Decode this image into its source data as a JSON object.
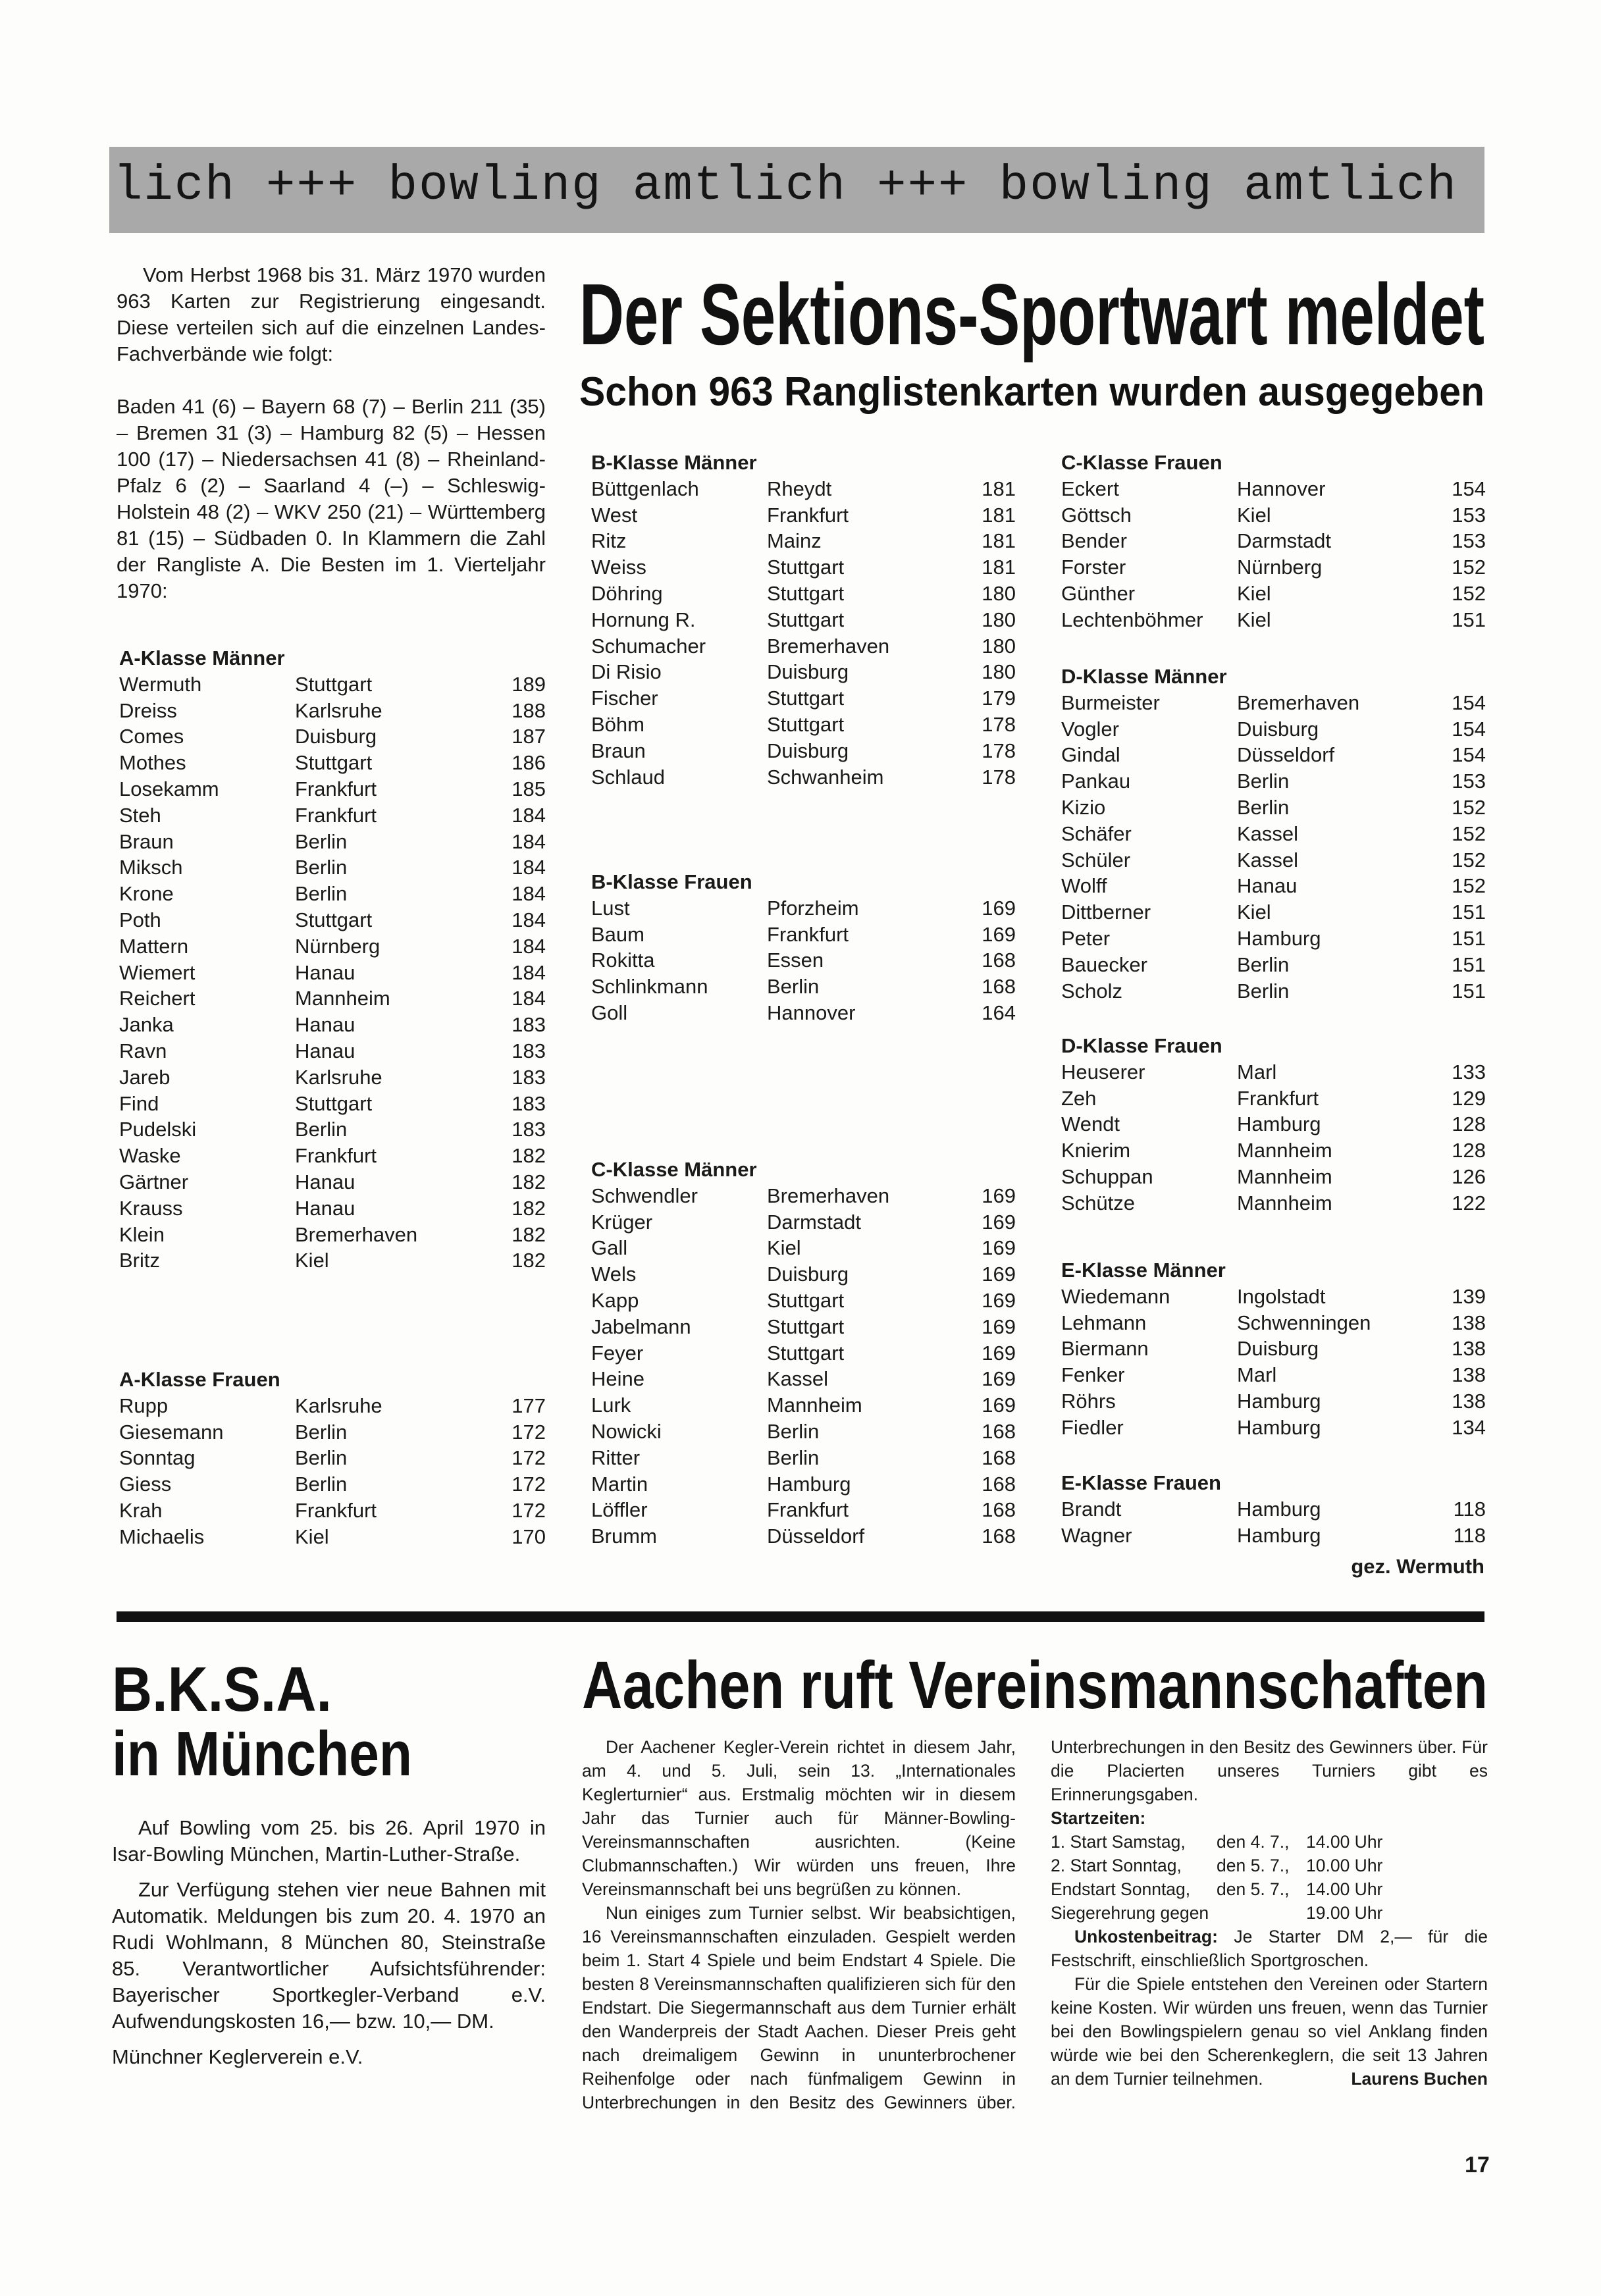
{
  "banner": "lich +++ bowling amtlich +++ bowling amtlich +++ bo",
  "main_article": {
    "title": "Der Sektions-Sportwart meldet",
    "subtitle": "Schon 963 Ranglistenkarten wurden ausgegeben",
    "intro": "Vom Herbst 1968 bis 31. März 1970 wurden 963 Karten zur Registrierung eingesandt. Diese verteilen sich auf die einzelnen Landes-Fachverbände wie folgt:",
    "distribution": "Baden 41 (6) – Bayern 68 (7) – Berlin 211 (35) – Bremen 31 (3) – Hamburg 82 (5) – Hessen 100 (17) – Niedersachsen 41 (8) – Rheinland-Pfalz 6 (2) – Saarland 4 (–) – Schleswig-Holstein 48 (2) – WKV 250 (21) – Württemberg 81 (15) – Südbaden 0. In Klammern die Zahl der Rangliste A. Die Besten im 1. Vierteljahr 1970:",
    "sections": [
      {
        "title": "A-Klasse Männer",
        "rows": [
          [
            "Wermuth",
            "Stuttgart",
            "189"
          ],
          [
            "Dreiss",
            "Karlsruhe",
            "188"
          ],
          [
            "Comes",
            "Duisburg",
            "187"
          ],
          [
            "Mothes",
            "Stuttgart",
            "186"
          ],
          [
            "Losekamm",
            "Frankfurt",
            "185"
          ],
          [
            "Steh",
            "Frankfurt",
            "184"
          ],
          [
            "Braun",
            "Berlin",
            "184"
          ],
          [
            "Miksch",
            "Berlin",
            "184"
          ],
          [
            "Krone",
            "Berlin",
            "184"
          ],
          [
            "Poth",
            "Stuttgart",
            "184"
          ],
          [
            "Mattern",
            "Nürnberg",
            "184"
          ],
          [
            "Wiemert",
            "Hanau",
            "184"
          ],
          [
            "Reichert",
            "Mannheim",
            "184"
          ],
          [
            "Janka",
            "Hanau",
            "183"
          ],
          [
            "Ravn",
            "Hanau",
            "183"
          ],
          [
            "Jareb",
            "Karlsruhe",
            "183"
          ],
          [
            "Find",
            "Stuttgart",
            "183"
          ],
          [
            "Pudelski",
            "Berlin",
            "183"
          ],
          [
            "Waske",
            "Frankfurt",
            "182"
          ],
          [
            "Gärtner",
            "Hanau",
            "182"
          ],
          [
            "Krauss",
            "Hanau",
            "182"
          ],
          [
            "Klein",
            "Bremerhaven",
            "182"
          ],
          [
            "Britz",
            "Kiel",
            "182"
          ]
        ]
      },
      {
        "title": "A-Klasse Frauen",
        "rows": [
          [
            "Rupp",
            "Karlsruhe",
            "177"
          ],
          [
            "Giesemann",
            "Berlin",
            "172"
          ],
          [
            "Sonntag",
            "Berlin",
            "172"
          ],
          [
            "Giess",
            "Berlin",
            "172"
          ],
          [
            "Krah",
            "Frankfurt",
            "172"
          ],
          [
            "Michaelis",
            "Kiel",
            "170"
          ]
        ]
      },
      {
        "title": "B-Klasse Männer",
        "rows": [
          [
            "Büttgenlach",
            "Rheydt",
            "181"
          ],
          [
            "West",
            "Frankfurt",
            "181"
          ],
          [
            "Ritz",
            "Mainz",
            "181"
          ],
          [
            "Weiss",
            "Stuttgart",
            "181"
          ],
          [
            "Döhring",
            "Stuttgart",
            "180"
          ],
          [
            "Hornung R.",
            "Stuttgart",
            "180"
          ],
          [
            "Schumacher",
            "Bremerhaven",
            "180"
          ],
          [
            "Di Risio",
            "Duisburg",
            "180"
          ],
          [
            "Fischer",
            "Stuttgart",
            "179"
          ],
          [
            "Böhm",
            "Stuttgart",
            "178"
          ],
          [
            "Braun",
            "Duisburg",
            "178"
          ],
          [
            "Schlaud",
            "Schwanheim",
            "178"
          ]
        ]
      },
      {
        "title": "B-Klasse Frauen",
        "rows": [
          [
            "Lust",
            "Pforzheim",
            "169"
          ],
          [
            "Baum",
            "Frankfurt",
            "169"
          ],
          [
            "Rokitta",
            "Essen",
            "168"
          ],
          [
            "Schlinkmann",
            "Berlin",
            "168"
          ],
          [
            "Goll",
            "Hannover",
            "164"
          ]
        ]
      },
      {
        "title": "C-Klasse Männer",
        "rows": [
          [
            "Schwendler",
            "Bremerhaven",
            "169"
          ],
          [
            "Krüger",
            "Darmstadt",
            "169"
          ],
          [
            "Gall",
            "Kiel",
            "169"
          ],
          [
            "Wels",
            "Duisburg",
            "169"
          ],
          [
            "Kapp",
            "Stuttgart",
            "169"
          ],
          [
            "Jabelmann",
            "Stuttgart",
            "169"
          ],
          [
            "Feyer",
            "Stuttgart",
            "169"
          ],
          [
            "Heine",
            "Kassel",
            "169"
          ],
          [
            "Lurk",
            "Mannheim",
            "169"
          ],
          [
            "Nowicki",
            "Berlin",
            "168"
          ],
          [
            "Ritter",
            "Berlin",
            "168"
          ],
          [
            "Martin",
            "Hamburg",
            "168"
          ],
          [
            "Löffler",
            "Frankfurt",
            "168"
          ],
          [
            "Brumm",
            "Düsseldorf",
            "168"
          ]
        ]
      },
      {
        "title": "C-Klasse Frauen",
        "rows": [
          [
            "Eckert",
            "Hannover",
            "154"
          ],
          [
            "Göttsch",
            "Kiel",
            "153"
          ],
          [
            "Bender",
            "Darmstadt",
            "153"
          ],
          [
            "Forster",
            "Nürnberg",
            "152"
          ],
          [
            "Günther",
            "Kiel",
            "152"
          ],
          [
            "Lechtenböhmer",
            "Kiel",
            "151"
          ]
        ]
      },
      {
        "title": "D-Klasse Männer",
        "rows": [
          [
            "Burmeister",
            "Bremerhaven",
            "154"
          ],
          [
            "Vogler",
            "Duisburg",
            "154"
          ],
          [
            "Gindal",
            "Düsseldorf",
            "154"
          ],
          [
            "Pankau",
            "Berlin",
            "153"
          ],
          [
            "Kizio",
            "Berlin",
            "152"
          ],
          [
            "Schäfer",
            "Kassel",
            "152"
          ],
          [
            "Schüler",
            "Kassel",
            "152"
          ],
          [
            "Wolff",
            "Hanau",
            "152"
          ],
          [
            "Dittberner",
            "Kiel",
            "151"
          ],
          [
            "Peter",
            "Hamburg",
            "151"
          ],
          [
            "Bauecker",
            "Berlin",
            "151"
          ],
          [
            "Scholz",
            "Berlin",
            "151"
          ]
        ]
      },
      {
        "title": "D-Klasse Frauen",
        "rows": [
          [
            "Heuserer",
            "Marl",
            "133"
          ],
          [
            "Zeh",
            "Frankfurt",
            "129"
          ],
          [
            "Wendt",
            "Hamburg",
            "128"
          ],
          [
            "Knierim",
            "Mannheim",
            "128"
          ],
          [
            "Schuppan",
            "Mannheim",
            "126"
          ],
          [
            "Schütze",
            "Mannheim",
            "122"
          ]
        ]
      },
      {
        "title": "E-Klasse Männer",
        "rows": [
          [
            "Wiedemann",
            "Ingolstadt",
            "139"
          ],
          [
            "Lehmann",
            "Schwenningen",
            "138"
          ],
          [
            "Biermann",
            "Duisburg",
            "138"
          ],
          [
            "Fenker",
            "Marl",
            "138"
          ],
          [
            "Röhrs",
            "Hamburg",
            "138"
          ],
          [
            "Fiedler",
            "Hamburg",
            "134"
          ]
        ]
      },
      {
        "title": "E-Klasse Frauen",
        "rows": [
          [
            "Brandt",
            "Hamburg",
            "118"
          ],
          [
            "Wagner",
            "Hamburg",
            "118"
          ]
        ]
      }
    ],
    "signature": "gez. Wermuth"
  },
  "bksa": {
    "title_line1": "B.K.S.A.",
    "title_line2": "in München",
    "p1": "Auf Bowling vom 25. bis 26. April 1970 in Isar-Bowling München, Martin-Luther-Straße.",
    "p2": "Zur Verfügung stehen vier neue Bahnen mit Automatik. Meldungen bis zum 20. 4. 1970 an Rudi Wohlmann, 8 München 80, Steinstraße 85. Verantwortlicher Aufsichtsführender: Bayerischer Sportkegler-Verband e.V. Aufwendungskosten 16,— bzw. 10,— DM.",
    "signature": "Münchner Keglerverein e.V."
  },
  "aachen": {
    "title": "Aachen ruft Vereinsmannschaften",
    "p1": "Der Aachener Kegler-Verein richtet in diesem Jahr, am 4. und 5. Juli, sein 13. „Internationales Keglerturnier“ aus. Erstmalig möchten wir in diesem Jahr das Turnier auch für Männer-Bowling-Vereinsmannschaften ausrichten. (Keine Clubmannschaften.) Wir würden uns freuen, Ihre Vereinsmannschaft bei uns begrüßen zu können.",
    "p2": "Nun einiges zum Turnier selbst. Wir beabsichtigen, 16 Vereinsmannschaften einzuladen. Gespielt werden beim 1. Start 4 Spiele und beim Endstart 4 Spiele. Die besten 8 Vereinsmannschaften qualifizieren sich für den Endstart. Die Siegermannschaft aus dem Turnier erhält den Wanderpreis der Stadt Aachen. Dieser Preis geht nach dreimaligem Gewinn in ununterbrochener Reihenfolge oder nach fünfmaligem Gewinn in Unterbrechungen in den Besitz des Gewinners über. Für die Placierten unseres Turniers gibt es Erinnerungsgaben.",
    "startzeiten_label": "Startzeiten:",
    "startzeiten": [
      [
        "1. Start Samstag,",
        "den 4. 7.,",
        "14.00 Uhr"
      ],
      [
        "2. Start Sonntag,",
        "den 5. 7.,",
        "10.00 Uhr"
      ],
      [
        "Endstart Sonntag,",
        "den 5. 7.,",
        "14.00 Uhr"
      ],
      [
        "Siegerehrung gegen",
        "",
        "19.00 Uhr"
      ]
    ],
    "unkosten_label": "Unkostenbeitrag:",
    "unkosten_text": " Je Starter DM 2,— für die Festschrift, einschließlich Sportgroschen.",
    "p3": "Für die Spiele entstehen den Vereinen oder Startern keine Kosten. Wir würden uns freuen, wenn das Turnier bei den Bowlingspielern genau so viel Anklang finden würde wie bei den Scherenkeglern, die seit 13 Jahren an dem Turnier teilnehmen.",
    "signature": "Laurens Buchen"
  },
  "page_number": "17"
}
